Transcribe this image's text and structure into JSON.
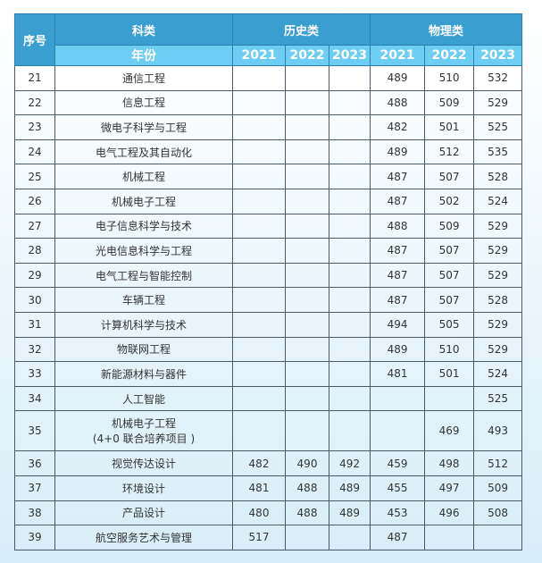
{
  "header": {
    "seq": "序号",
    "category": "科类",
    "year": "年份",
    "history": "历史类",
    "physics": "物理类",
    "years": [
      "2021",
      "2022",
      "2023",
      "2021",
      "2022",
      "2023"
    ]
  },
  "rows": [
    {
      "no": "21",
      "major": "通信工程",
      "h": [
        "",
        "",
        ""
      ],
      "p": [
        "489",
        "510",
        "532"
      ]
    },
    {
      "no": "22",
      "major": "信息工程",
      "h": [
        "",
        "",
        ""
      ],
      "p": [
        "488",
        "509",
        "529"
      ]
    },
    {
      "no": "23",
      "major": "微电子科学与工程",
      "h": [
        "",
        "",
        ""
      ],
      "p": [
        "482",
        "501",
        "525"
      ]
    },
    {
      "no": "24",
      "major": "电气工程及其自动化",
      "h": [
        "",
        "",
        ""
      ],
      "p": [
        "489",
        "512",
        "535"
      ]
    },
    {
      "no": "25",
      "major": "机械工程",
      "h": [
        "",
        "",
        ""
      ],
      "p": [
        "487",
        "507",
        "528"
      ]
    },
    {
      "no": "26",
      "major": "机械电子工程",
      "h": [
        "",
        "",
        ""
      ],
      "p": [
        "487",
        "502",
        "524"
      ]
    },
    {
      "no": "27",
      "major": "电子信息科学与技术",
      "h": [
        "",
        "",
        ""
      ],
      "p": [
        "488",
        "509",
        "529"
      ]
    },
    {
      "no": "28",
      "major": "光电信息科学与工程",
      "h": [
        "",
        "",
        ""
      ],
      "p": [
        "487",
        "507",
        "529"
      ]
    },
    {
      "no": "29",
      "major": "电气工程与智能控制",
      "h": [
        "",
        "",
        ""
      ],
      "p": [
        "487",
        "507",
        "529"
      ]
    },
    {
      "no": "30",
      "major": "车辆工程",
      "h": [
        "",
        "",
        ""
      ],
      "p": [
        "487",
        "507",
        "528"
      ]
    },
    {
      "no": "31",
      "major": "计算机科学与技术",
      "h": [
        "",
        "",
        ""
      ],
      "p": [
        "494",
        "505",
        "529"
      ]
    },
    {
      "no": "32",
      "major": "物联网工程",
      "h": [
        "",
        "",
        ""
      ],
      "p": [
        "489",
        "510",
        "529"
      ]
    },
    {
      "no": "33",
      "major": "新能源材料与器件",
      "h": [
        "",
        "",
        ""
      ],
      "p": [
        "481",
        "501",
        "524"
      ]
    },
    {
      "no": "34",
      "major": "人工智能",
      "h": [
        "",
        "",
        ""
      ],
      "p": [
        "",
        "",
        "525"
      ]
    },
    {
      "no": "35",
      "major": "机械电子工程",
      "major2": "(4+0 联合培养项目 )",
      "h": [
        "",
        "",
        ""
      ],
      "p": [
        "",
        "469",
        "493"
      ]
    },
    {
      "no": "36",
      "major": "视觉传达设计",
      "h": [
        "482",
        "490",
        "492"
      ],
      "p": [
        "459",
        "498",
        "512"
      ]
    },
    {
      "no": "37",
      "major": "环境设计",
      "h": [
        "481",
        "488",
        "489"
      ],
      "p": [
        "455",
        "497",
        "509"
      ]
    },
    {
      "no": "38",
      "major": "产品设计",
      "h": [
        "480",
        "488",
        "489"
      ],
      "p": [
        "453",
        "496",
        "508"
      ]
    },
    {
      "no": "39",
      "major": "航空服务艺术与管理",
      "h": [
        "517",
        "",
        ""
      ],
      "p": [
        "487",
        "",
        ""
      ]
    }
  ]
}
